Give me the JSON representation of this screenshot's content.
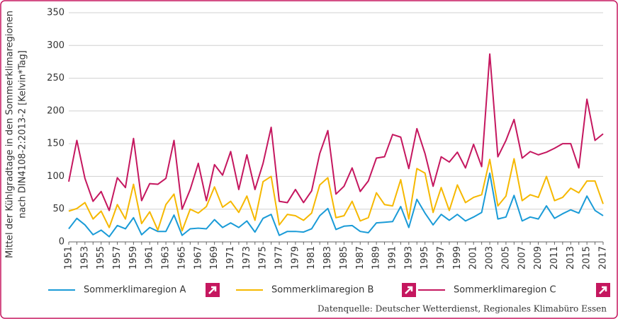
{
  "chart_data": {
    "type": "line",
    "y_label": [
      "Mittel der Kühlgradtage in den Sommerklimaregionen",
      "nach DIN4108-2:2013-2 [Kelvin*Tag]"
    ],
    "source": "Datenquelle: Deutscher Wetterdienst, Regionales Klimabüro Essen",
    "x": [
      1951,
      1952,
      1953,
      1954,
      1955,
      1956,
      1957,
      1958,
      1959,
      1960,
      1961,
      1962,
      1963,
      1964,
      1965,
      1966,
      1967,
      1968,
      1969,
      1970,
      1971,
      1972,
      1973,
      1974,
      1975,
      1976,
      1977,
      1978,
      1979,
      1980,
      1981,
      1982,
      1983,
      1984,
      1985,
      1986,
      1987,
      1988,
      1989,
      1990,
      1991,
      1992,
      1993,
      1994,
      1995,
      1996,
      1997,
      1998,
      1999,
      2000,
      2001,
      2002,
      2003,
      2004,
      2005,
      2006,
      2007,
      2008,
      2009,
      2010,
      2011,
      2012,
      2013,
      2014,
      2015,
      2016,
      2017
    ],
    "xlim": [
      1951,
      2017
    ],
    "xticks": [
      1951,
      1953,
      1955,
      1957,
      1959,
      1961,
      1963,
      1965,
      1967,
      1969,
      1971,
      1973,
      1975,
      1977,
      1979,
      1981,
      1983,
      1985,
      1987,
      1989,
      1991,
      1993,
      1995,
      1997,
      1999,
      2001,
      2003,
      2005,
      2007,
      2009,
      2011,
      2013,
      2015,
      2017
    ],
    "ylim": [
      0,
      350
    ],
    "yticks": [
      0,
      50,
      100,
      150,
      200,
      250,
      300,
      350
    ],
    "grid": true,
    "series": [
      {
        "name": "Sommerklimaregion A",
        "color": "#1a9bd7",
        "values": [
          20,
          36,
          26,
          11,
          18,
          8,
          25,
          20,
          37,
          11,
          22,
          16,
          16,
          41,
          10,
          20,
          21,
          20,
          34,
          22,
          29,
          22,
          32,
          15,
          36,
          42,
          10,
          16,
          16,
          15,
          20,
          40,
          51,
          19,
          24,
          25,
          16,
          14,
          29,
          30,
          31,
          54,
          22,
          65,
          44,
          26,
          42,
          33,
          42,
          32,
          38,
          45,
          105,
          35,
          38,
          71,
          32,
          38,
          35,
          55,
          36,
          43,
          49,
          44,
          70,
          48,
          40
        ]
      },
      {
        "name": "Sommerklimaregion B",
        "color": "#f6b800",
        "values": [
          47,
          51,
          60,
          35,
          47,
          22,
          57,
          35,
          88,
          28,
          46,
          18,
          57,
          73,
          17,
          50,
          44,
          54,
          84,
          53,
          62,
          45,
          70,
          33,
          92,
          100,
          26,
          42,
          40,
          33,
          44,
          87,
          98,
          37,
          40,
          62,
          32,
          37,
          75,
          57,
          55,
          95,
          35,
          112,
          105,
          45,
          83,
          48,
          87,
          60,
          68,
          72,
          126,
          55,
          70,
          127,
          63,
          72,
          68,
          100,
          63,
          68,
          82,
          75,
          93,
          93,
          58
        ]
      },
      {
        "name": "Sommerklimaregion C",
        "color": "#c5175f",
        "values": [
          92,
          155,
          97,
          62,
          77,
          48,
          98,
          83,
          158,
          63,
          89,
          88,
          97,
          155,
          50,
          80,
          120,
          63,
          118,
          102,
          138,
          80,
          133,
          80,
          120,
          175,
          62,
          60,
          80,
          60,
          78,
          135,
          170,
          73,
          85,
          113,
          77,
          93,
          128,
          130,
          164,
          160,
          112,
          173,
          135,
          85,
          130,
          122,
          137,
          113,
          149,
          115,
          287,
          130,
          155,
          187,
          128,
          138,
          133,
          137,
          143,
          150,
          150,
          113,
          218,
          155,
          165
        ]
      }
    ]
  }
}
